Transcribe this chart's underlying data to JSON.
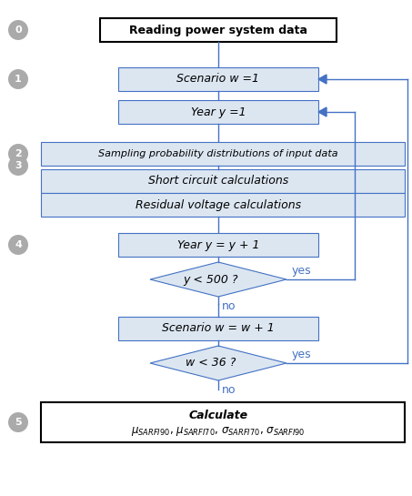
{
  "bg_color": "#ffffff",
  "box_fill": "#dce6f1",
  "box_edge": "#4472c4",
  "diamond_fill": "#dce6f1",
  "diamond_edge": "#4472c4",
  "arrow_color": "#4472c4",
  "step0_text": "Reading power system data",
  "step0_fill": "#ffffff",
  "step0_edge": "#000000",
  "step1a_text": "Scenario w =1",
  "step1b_text": "Year y =1",
  "step2_text": "Sampling probability distributions of input data",
  "step3a_text": "Short circuit calculations",
  "step3b_text": "Residual voltage calculations",
  "step4_text": "Year y = y + 1",
  "diamond1_text": "y < 500 ?",
  "step_w_text": "Scenario w = w + 1",
  "diamond2_text": "w < 36 ?",
  "circle_fill": "#aaaaaa",
  "label_color": "#4472c4",
  "text_color": "#000000",
  "font_family": "DejaVu Sans"
}
